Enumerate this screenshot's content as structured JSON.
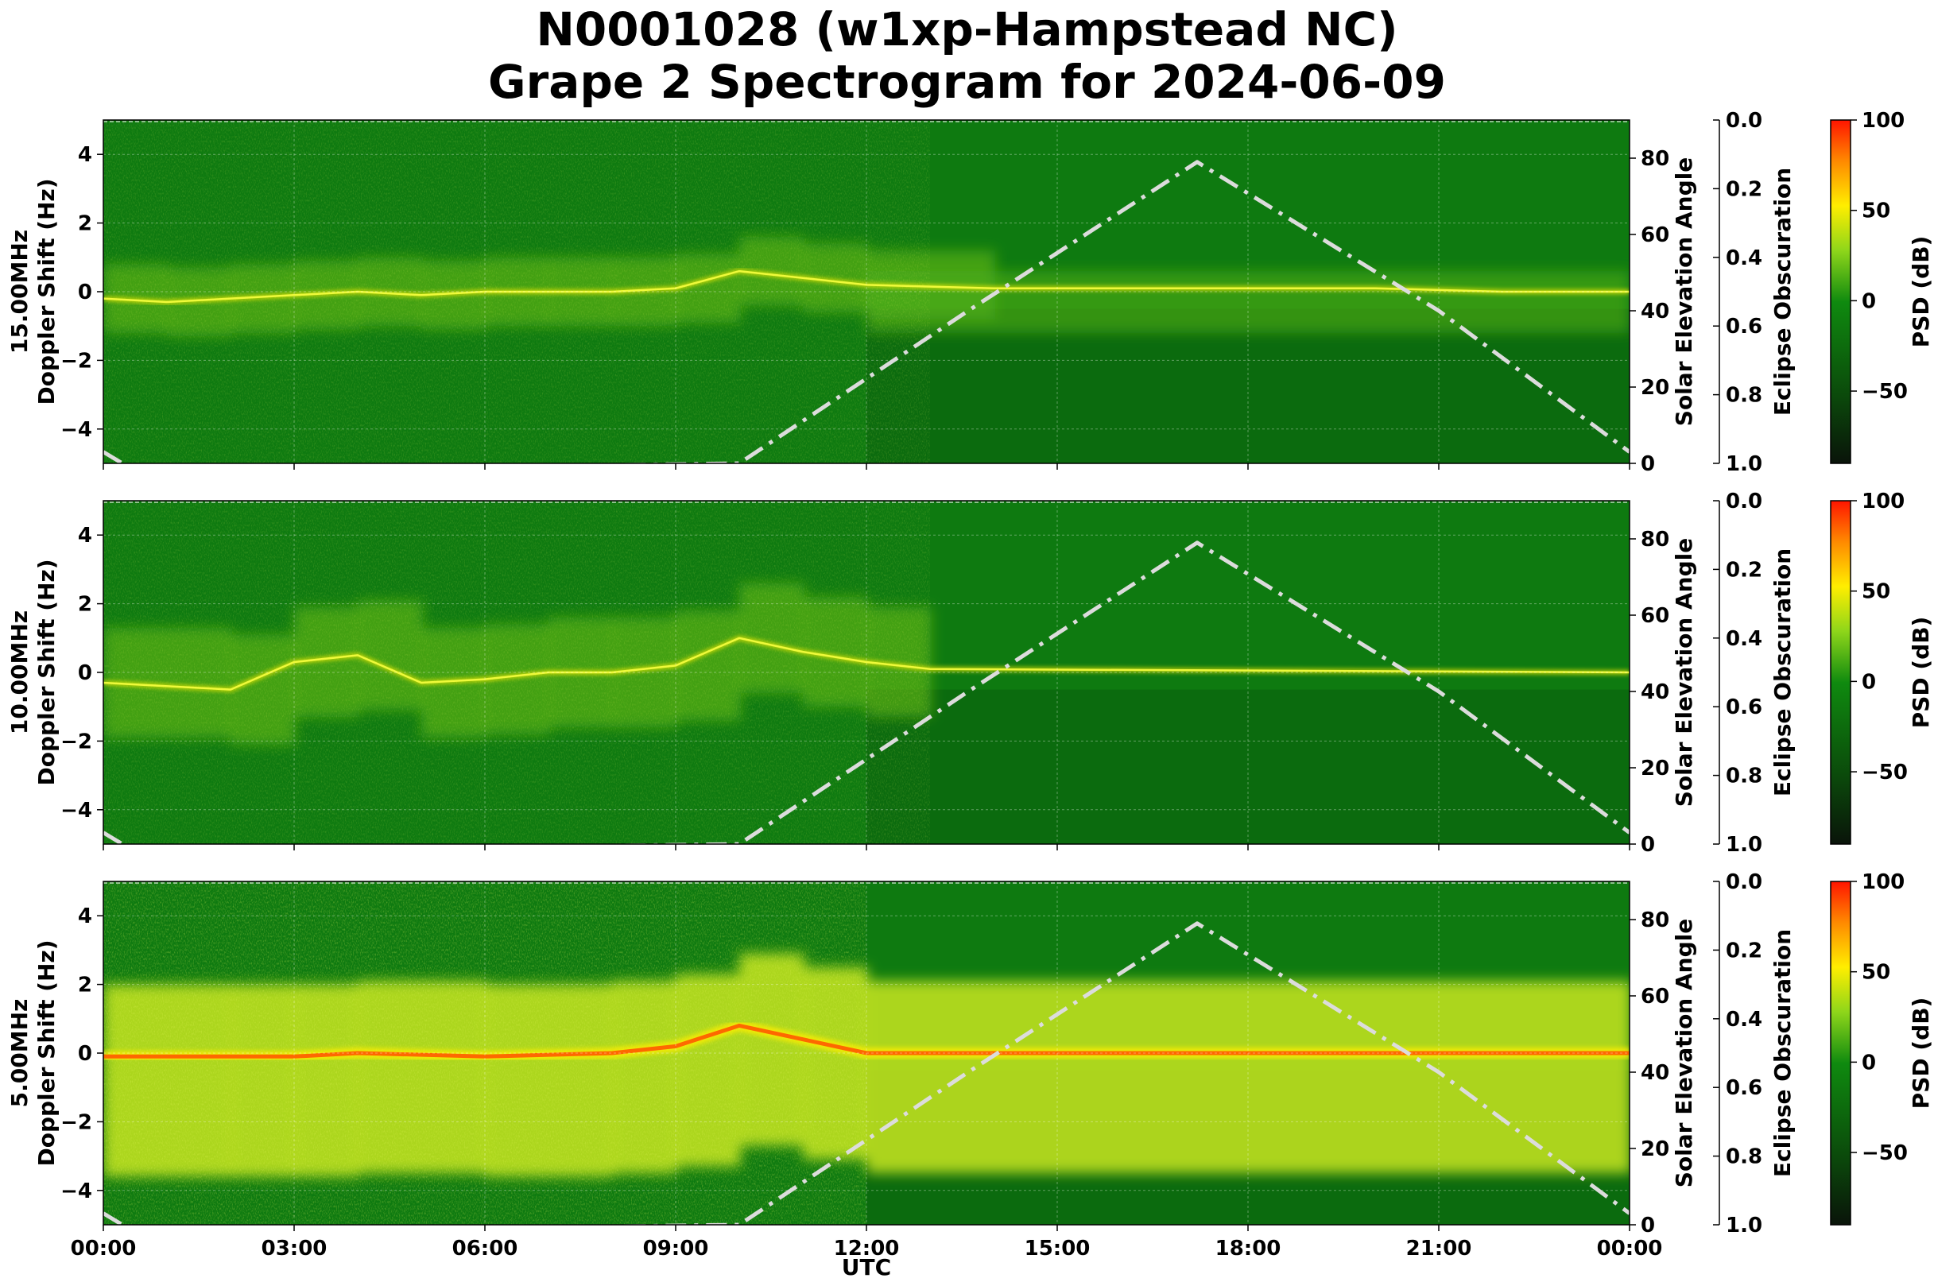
{
  "figure": {
    "title_line1": "N0001028 (w1xp-Hampstead NC)",
    "title_line2": "Grape 2 Spectrogram for 2024-06-09",
    "xlabel": "UTC",
    "x_tick_labels": [
      "00:00",
      "03:00",
      "06:00",
      "09:00",
      "12:00",
      "15:00",
      "18:00",
      "21:00",
      "00:00"
    ]
  },
  "colors": {
    "cmap": [
      "#0a1a0a",
      "#0d5a0d",
      "#0f8a0f",
      "#bce61e",
      "#ffee00",
      "#ff2000"
    ],
    "solar_line": "#dcdcdc",
    "background_green": "#0e7a10"
  },
  "chart_data": [
    {
      "type": "heatmap",
      "panel_label": "15.00MHz",
      "ylabel": "Doppler Shift (Hz)",
      "ylim": [
        -5,
        5
      ],
      "y_ticks": [
        4,
        2,
        0,
        -2,
        -4
      ],
      "y_tick_labels": [
        "4",
        "2",
        "0",
        "−2",
        "−4"
      ],
      "x": [
        "00:00",
        "03:00",
        "06:00",
        "09:00",
        "12:00",
        "15:00",
        "18:00",
        "21:00",
        "00:00"
      ],
      "doppler_trace_hz": [
        [
          0,
          -0.2
        ],
        [
          1,
          -0.3
        ],
        [
          2,
          -0.2
        ],
        [
          3,
          -0.1
        ],
        [
          4,
          0.0
        ],
        [
          5,
          -0.1
        ],
        [
          6,
          0.0
        ],
        [
          7,
          0.0
        ],
        [
          8,
          0.0
        ],
        [
          9,
          0.1
        ],
        [
          10,
          0.6
        ],
        [
          11,
          0.4
        ],
        [
          12,
          0.2
        ],
        [
          14,
          0.1
        ],
        [
          16,
          0.1
        ],
        [
          18,
          0.1
        ],
        [
          20,
          0.1
        ],
        [
          22,
          0.0
        ],
        [
          24,
          0.0
        ]
      ],
      "solar_elevation_axis": {
        "label": "Solar Elevation Angle",
        "ylim": [
          0,
          90
        ],
        "ticks": [
          "0",
          "20",
          "40",
          "60",
          "80"
        ]
      },
      "solar_elevation_deg": [
        [
          0,
          3
        ],
        [
          0.5,
          -2
        ],
        [
          10,
          0
        ],
        [
          13.6,
          40
        ],
        [
          17.2,
          79
        ],
        [
          21,
          40
        ],
        [
          24,
          3
        ]
      ],
      "eclipse_axis": {
        "label": "Eclipse Obscuration",
        "ylim": [
          1.0,
          0.0
        ],
        "ticks": [
          "0.0",
          "0.2",
          "0.4",
          "0.6",
          "0.8",
          "1.0"
        ]
      },
      "colorbar": {
        "label": "PSD (dB)",
        "range": [
          -90,
          100
        ],
        "ticks": [
          "100",
          "50",
          "0",
          "−50"
        ]
      },
      "intensity": "low"
    },
    {
      "type": "heatmap",
      "panel_label": "10.00MHz",
      "ylabel": "Doppler Shift (Hz)",
      "ylim": [
        -5,
        5
      ],
      "y_ticks": [
        4,
        2,
        0,
        -2,
        -4
      ],
      "y_tick_labels": [
        "4",
        "2",
        "0",
        "−2",
        "−4"
      ],
      "x": [
        "00:00",
        "03:00",
        "06:00",
        "09:00",
        "12:00",
        "15:00",
        "18:00",
        "21:00",
        "00:00"
      ],
      "doppler_trace_hz": [
        [
          0,
          -0.3
        ],
        [
          2,
          -0.5
        ],
        [
          3,
          0.3
        ],
        [
          4,
          0.5
        ],
        [
          5,
          -0.3
        ],
        [
          6,
          -0.2
        ],
        [
          7,
          0.0
        ],
        [
          8,
          0.0
        ],
        [
          9,
          0.2
        ],
        [
          10,
          1.0
        ],
        [
          11,
          0.6
        ],
        [
          12,
          0.3
        ],
        [
          13,
          0.1
        ],
        [
          24,
          0.0
        ]
      ],
      "solar_elevation_axis": {
        "label": "Solar Elevation Angle",
        "ylim": [
          0,
          90
        ],
        "ticks": [
          "0",
          "20",
          "40",
          "60",
          "80"
        ]
      },
      "solar_elevation_deg": [
        [
          0,
          3
        ],
        [
          0.5,
          -2
        ],
        [
          10,
          0
        ],
        [
          13.6,
          40
        ],
        [
          17.2,
          79
        ],
        [
          21,
          40
        ],
        [
          24,
          3
        ]
      ],
      "eclipse_axis": {
        "label": "Eclipse Obscuration",
        "ylim": [
          1.0,
          0.0
        ],
        "ticks": [
          "0.0",
          "0.2",
          "0.4",
          "0.6",
          "0.8",
          "1.0"
        ]
      },
      "colorbar": {
        "label": "PSD (dB)",
        "range": [
          -90,
          100
        ],
        "ticks": [
          "100",
          "50",
          "0",
          "−50"
        ]
      },
      "intensity": "medium"
    },
    {
      "type": "heatmap",
      "panel_label": "5.00MHz",
      "ylabel": "Doppler Shift (Hz)",
      "ylim": [
        -5,
        5
      ],
      "y_ticks": [
        4,
        2,
        0,
        -2,
        -4
      ],
      "y_tick_labels": [
        "4",
        "2",
        "0",
        "−2",
        "−4"
      ],
      "x": [
        "00:00",
        "03:00",
        "06:00",
        "09:00",
        "12:00",
        "15:00",
        "18:00",
        "21:00",
        "00:00"
      ],
      "doppler_trace_hz": [
        [
          0,
          -0.1
        ],
        [
          2,
          -0.1
        ],
        [
          3,
          -0.1
        ],
        [
          4,
          0.0
        ],
        [
          6,
          -0.1
        ],
        [
          8,
          0.0
        ],
        [
          9,
          0.2
        ],
        [
          10,
          0.8
        ],
        [
          11,
          0.4
        ],
        [
          12,
          0.0
        ],
        [
          24,
          0.0
        ]
      ],
      "solar_elevation_axis": {
        "label": "Solar Elevation Angle",
        "ylim": [
          0,
          90
        ],
        "ticks": [
          "0",
          "20",
          "40",
          "60",
          "80"
        ]
      },
      "solar_elevation_deg": [
        [
          0,
          3
        ],
        [
          0.5,
          -2
        ],
        [
          10,
          0
        ],
        [
          13.6,
          40
        ],
        [
          17.2,
          79
        ],
        [
          21,
          40
        ],
        [
          24,
          3
        ]
      ],
      "eclipse_axis": {
        "label": "Eclipse Obscuration",
        "ylim": [
          1.0,
          0.0
        ],
        "ticks": [
          "0.0",
          "0.2",
          "0.4",
          "0.6",
          "0.8",
          "1.0"
        ]
      },
      "colorbar": {
        "label": "PSD (dB)",
        "range": [
          -90,
          100
        ],
        "ticks": [
          "100",
          "50",
          "0",
          "−50"
        ]
      },
      "intensity": "high"
    }
  ]
}
